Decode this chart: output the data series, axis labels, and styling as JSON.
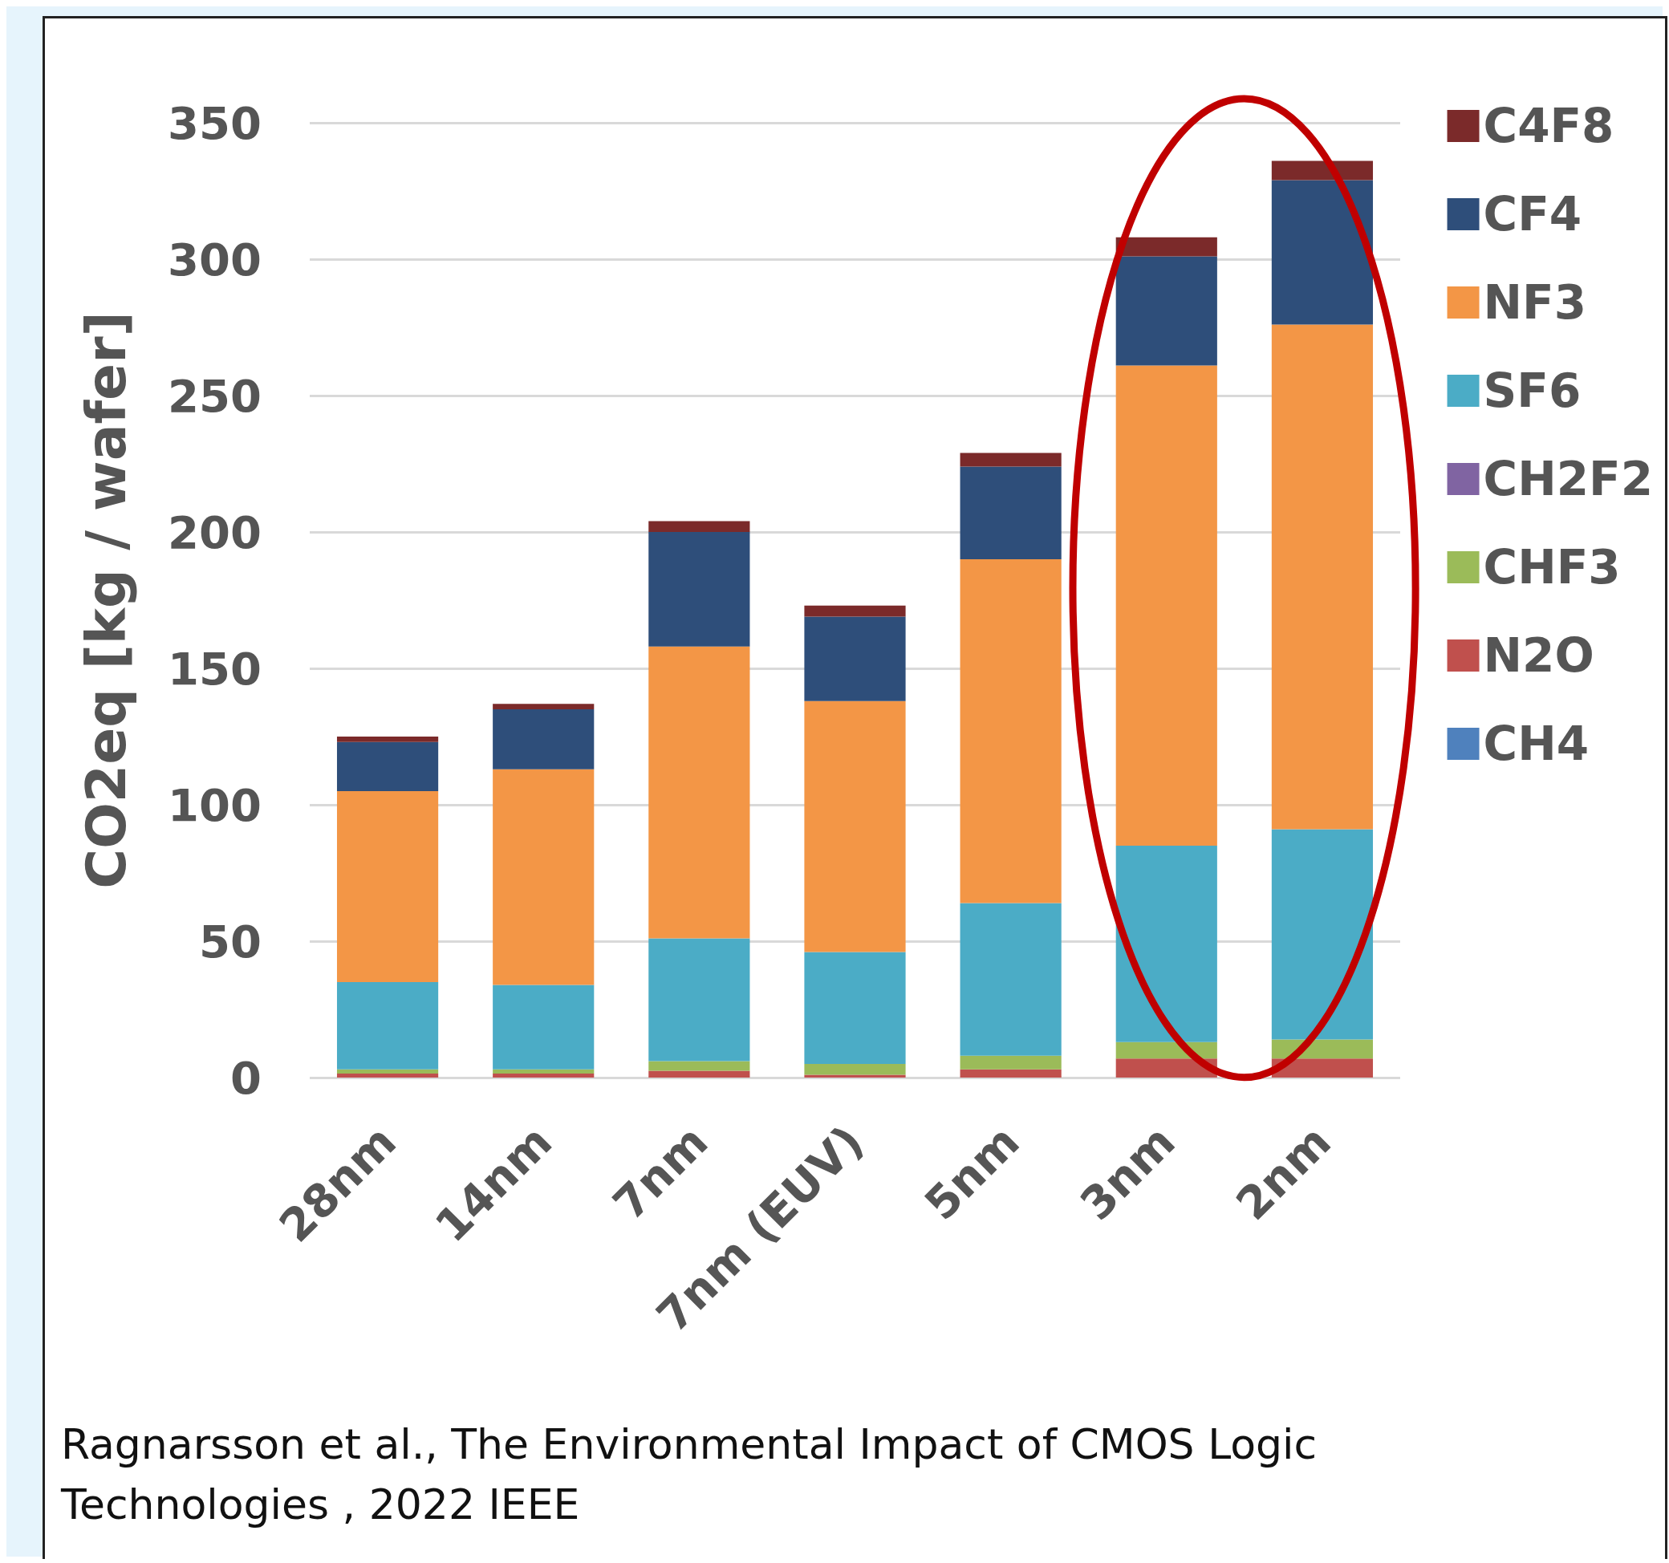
{
  "chart_data": {
    "type": "bar",
    "stacked": true,
    "categories": [
      "28nm",
      "14nm",
      "7nm",
      "7nm (EUV)",
      "5nm",
      "3nm",
      "2nm"
    ],
    "ylabel": "CO2eq [kg / wafer]",
    "ylim": [
      0,
      350
    ],
    "yticks": [
      0,
      50,
      100,
      150,
      200,
      250,
      300,
      350
    ],
    "grid": "y",
    "legend": "right",
    "series": [
      {
        "name": "CH4",
        "color": "#4f81bd",
        "values": [
          0,
          0,
          0,
          0,
          0,
          0,
          0
        ]
      },
      {
        "name": "N2O",
        "color": "#c0504d",
        "values": [
          1.5,
          1.5,
          2.5,
          1,
          3,
          7,
          7
        ]
      },
      {
        "name": "CHF3",
        "color": "#9bbb59",
        "values": [
          1.5,
          1.5,
          3.5,
          4,
          5,
          6,
          7
        ]
      },
      {
        "name": "CH2F2",
        "color": "#8064a2",
        "values": [
          0,
          0,
          0,
          0,
          0,
          0,
          0
        ]
      },
      {
        "name": "SF6",
        "color": "#4bacc6",
        "values": [
          32,
          31,
          45,
          41,
          56,
          72,
          77
        ]
      },
      {
        "name": "NF3",
        "color": "#f39646",
        "values": [
          70,
          79,
          107,
          92,
          126,
          176,
          185
        ]
      },
      {
        "name": "CF4",
        "color": "#2e4e7a",
        "values": [
          18,
          22,
          42,
          31,
          34,
          40,
          53
        ]
      },
      {
        "name": "C4F8",
        "color": "#7b2a2a",
        "values": [
          2,
          2,
          4,
          4,
          5,
          7,
          7
        ]
      }
    ],
    "annotations": [
      "Ragnarsson et al., The Environmental Impact of CMOS Logic Technologies , 2022 IEEE"
    ]
  }
}
